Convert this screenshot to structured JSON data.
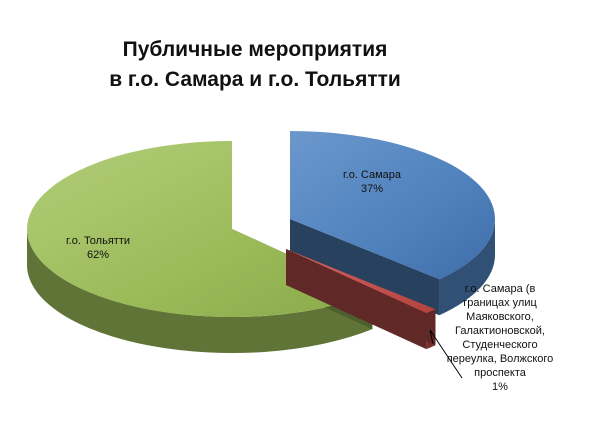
{
  "chart_data": {
    "type": "pie",
    "title_lines": [
      "Публичные мероприятия",
      "в г.о. Самара и г.о. Тольятти"
    ],
    "slices": [
      {
        "label_lines": [
          "г.о. Самара",
          "37%"
        ],
        "value": 37,
        "color": "#4F81BD",
        "exploded": true
      },
      {
        "label_lines": [
          "г.о. Самара (в",
          "границах улиц",
          "Маяковского,",
          "Галактионовской,",
          "Студенческого",
          "переулка, Волжского",
          "проспекта",
          "1%"
        ],
        "value": 1,
        "color": "#C0504D",
        "exploded": true
      },
      {
        "label_lines": [
          "г.о. Тольятти",
          "62%"
        ],
        "value": 62,
        "color": "#9BBB59",
        "exploded": false
      }
    ],
    "style": "3d-exploded",
    "legend": "none"
  }
}
